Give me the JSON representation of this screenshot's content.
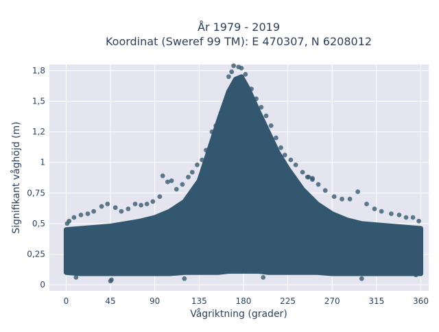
{
  "chart_data": {
    "type": "scatter",
    "title_line1": "År 1979 - 2019",
    "title_line2": "Koordinat (Sweref 99 TM): E 470307, N 6208012",
    "xlabel": "Vågriktning (grader)",
    "ylabel": "Signifikant våghöjd (m)",
    "xlim": [
      -17,
      368
    ],
    "ylim": [
      -0.05,
      1.8
    ],
    "x_ticks": [
      0,
      45,
      90,
      135,
      180,
      225,
      270,
      315,
      360
    ],
    "x_tick_labels": [
      "0",
      "45",
      "90",
      "135",
      "180",
      "225",
      "270",
      "315",
      "360"
    ],
    "y_ticks": [
      0,
      0.25,
      0.5,
      0.75,
      1,
      1.25,
      1.5,
      1.75
    ],
    "y_tick_labels": [
      "0",
      "0,25",
      "0,5",
      "0,75",
      "1",
      "1,2",
      "1,5",
      "1,8"
    ],
    "grid": true,
    "marker_color": "#33576e",
    "plot_bg": "#e5e5ef",
    "dense_envelope": [
      [
        0,
        0.1,
        0.45
      ],
      [
        15,
        0.09,
        0.46
      ],
      [
        30,
        0.09,
        0.47
      ],
      [
        45,
        0.09,
        0.48
      ],
      [
        60,
        0.09,
        0.5
      ],
      [
        75,
        0.09,
        0.52
      ],
      [
        90,
        0.09,
        0.55
      ],
      [
        105,
        0.09,
        0.6
      ],
      [
        120,
        0.1,
        0.68
      ],
      [
        135,
        0.1,
        0.85
      ],
      [
        145,
        0.1,
        1.1
      ],
      [
        155,
        0.1,
        1.35
      ],
      [
        165,
        0.11,
        1.58
      ],
      [
        172,
        0.11,
        1.68
      ],
      [
        178,
        0.11,
        1.7
      ],
      [
        185,
        0.11,
        1.6
      ],
      [
        195,
        0.11,
        1.42
      ],
      [
        205,
        0.1,
        1.25
      ],
      [
        215,
        0.1,
        1.08
      ],
      [
        225,
        0.1,
        0.95
      ],
      [
        240,
        0.1,
        0.78
      ],
      [
        255,
        0.1,
        0.66
      ],
      [
        270,
        0.09,
        0.58
      ],
      [
        285,
        0.09,
        0.53
      ],
      [
        300,
        0.09,
        0.5
      ],
      [
        315,
        0.09,
        0.49
      ],
      [
        330,
        0.09,
        0.48
      ],
      [
        345,
        0.09,
        0.47
      ],
      [
        360,
        0.09,
        0.46
      ]
    ],
    "points": [
      [
        170,
        1.79
      ],
      [
        175,
        1.78
      ],
      [
        178,
        1.77
      ],
      [
        168,
        1.74
      ],
      [
        182,
        1.72
      ],
      [
        165,
        1.7
      ],
      [
        188,
        1.6
      ],
      [
        193,
        1.52
      ],
      [
        198,
        1.45
      ],
      [
        203,
        1.38
      ],
      [
        208,
        1.3
      ],
      [
        213,
        1.2
      ],
      [
        218,
        1.12
      ],
      [
        222,
        1.06
      ],
      [
        228,
        1.02
      ],
      [
        233,
        0.98
      ],
      [
        240,
        0.92
      ],
      [
        246,
        0.88
      ],
      [
        250,
        0.86
      ],
      [
        256,
        0.82
      ],
      [
        263,
        0.77
      ],
      [
        272,
        0.72
      ],
      [
        280,
        0.7
      ],
      [
        288,
        0.7
      ],
      [
        296,
        0.76
      ],
      [
        305,
        0.66
      ],
      [
        313,
        0.62
      ],
      [
        320,
        0.6
      ],
      [
        330,
        0.58
      ],
      [
        338,
        0.57
      ],
      [
        345,
        0.55
      ],
      [
        352,
        0.55
      ],
      [
        358,
        0.52
      ],
      [
        157,
        1.4
      ],
      [
        152,
        1.3
      ],
      [
        148,
        1.25
      ],
      [
        142,
        1.1
      ],
      [
        138,
        1.02
      ],
      [
        133,
        0.98
      ],
      [
        128,
        0.92
      ],
      [
        124,
        0.88
      ],
      [
        118,
        0.82
      ],
      [
        112,
        0.78
      ],
      [
        107,
        0.85
      ],
      [
        103,
        0.84
      ],
      [
        98,
        0.89
      ],
      [
        95,
        0.72
      ],
      [
        88,
        0.68
      ],
      [
        82,
        0.66
      ],
      [
        76,
        0.65
      ],
      [
        70,
        0.66
      ],
      [
        63,
        0.62
      ],
      [
        56,
        0.6
      ],
      [
        50,
        0.63
      ],
      [
        42,
        0.66
      ],
      [
        36,
        0.64
      ],
      [
        28,
        0.6
      ],
      [
        22,
        0.58
      ],
      [
        15,
        0.57
      ],
      [
        8,
        0.55
      ],
      [
        3,
        0.52
      ],
      [
        1,
        0.5
      ],
      [
        45,
        0.03
      ],
      [
        46,
        0.04
      ],
      [
        10,
        0.06
      ],
      [
        120,
        0.05
      ],
      [
        200,
        0.06
      ],
      [
        300,
        0.05
      ],
      [
        355,
        0.08
      ],
      [
        245,
        0.88
      ],
      [
        250,
        0.87
      ]
    ]
  }
}
